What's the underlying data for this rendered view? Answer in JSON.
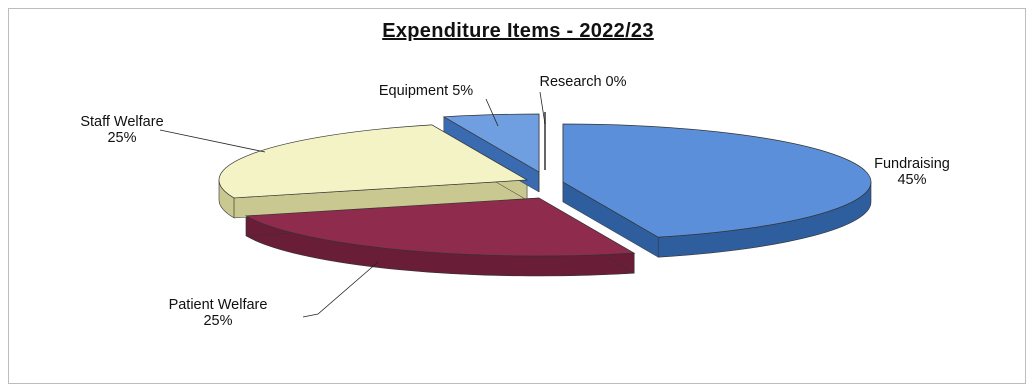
{
  "chart_data": {
    "type": "pie",
    "title": "Expenditure Items - 2022/23",
    "slices": [
      {
        "label": "Fundraising",
        "value": 45,
        "percent_label": "45%",
        "color": "#5b8fd9",
        "side_color": "#2f5e9e"
      },
      {
        "label": "Patient Welfare",
        "value": 25,
        "percent_label": "25%",
        "color": "#8f2b4c",
        "side_color": "#6a1d37"
      },
      {
        "label": "Staff Welfare",
        "value": 25,
        "percent_label": "25%",
        "color": "#f3f3c6",
        "side_color": "#c8c890"
      },
      {
        "label": "Equipment",
        "value": 5,
        "percent_label": "5%",
        "color": "#6f9fe0",
        "side_color": "#3a6bb0"
      },
      {
        "label": "Research",
        "value": 0,
        "percent_label": "0%",
        "color": "#e8e8e8",
        "side_color": "#9a9a9a"
      }
    ],
    "legend": "none",
    "style": "3d-exploded-pie"
  }
}
